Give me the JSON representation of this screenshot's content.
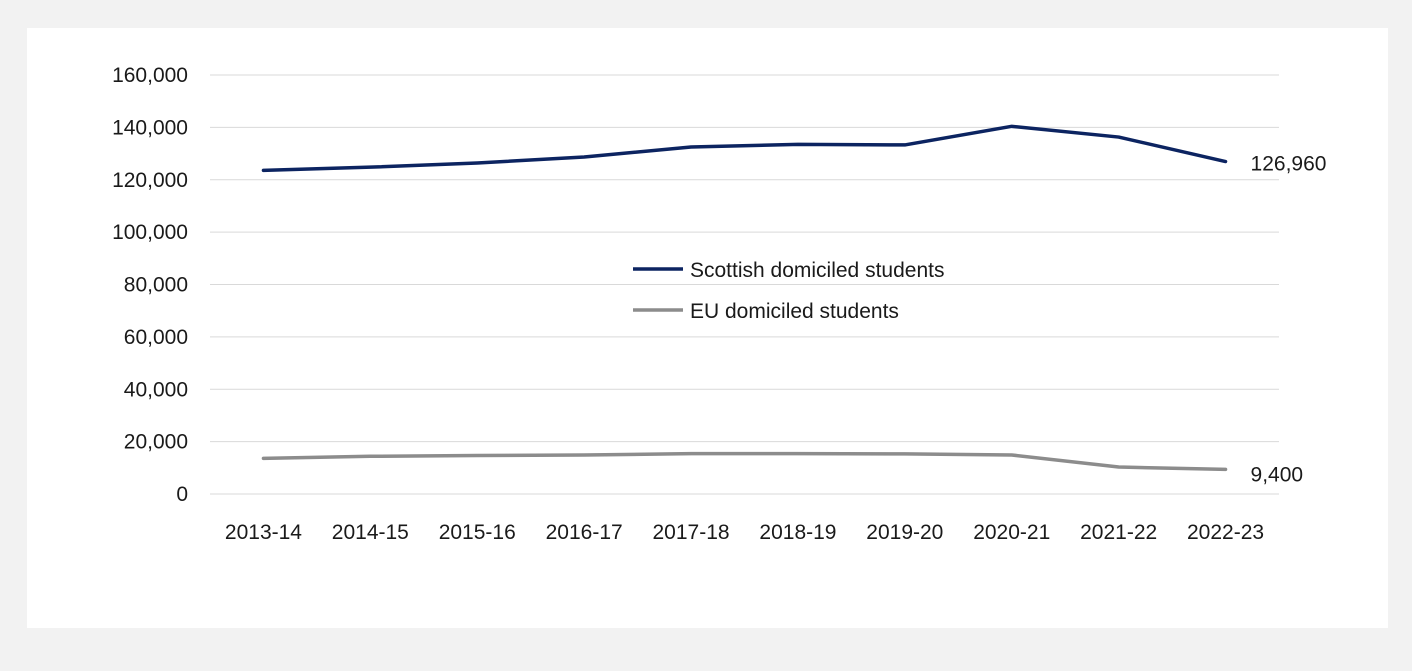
{
  "chart_data": {
    "type": "line",
    "categories": [
      "2013-14",
      "2014-15",
      "2015-16",
      "2016-17",
      "2017-18",
      "2018-19",
      "2019-20",
      "2020-21",
      "2021-22",
      "2022-23"
    ],
    "series": [
      {
        "name": "Scottish domiciled students",
        "values": [
          123600,
          124800,
          126400,
          128700,
          132500,
          133500,
          133300,
          140400,
          136300,
          126960
        ],
        "color": "#0c2461",
        "end_label": "126,960"
      },
      {
        "name": "EU domiciled students",
        "values": [
          13600,
          14400,
          14700,
          14900,
          15400,
          15400,
          15300,
          14900,
          10300,
          9400
        ],
        "color": "#8c8c8c",
        "end_label": "9,400"
      }
    ],
    "ylim": [
      0,
      160000
    ],
    "yticks": [
      0,
      20000,
      40000,
      60000,
      80000,
      100000,
      120000,
      140000,
      160000
    ],
    "ytick_labels": [
      "0",
      "20,000",
      "40,000",
      "60,000",
      "80,000",
      "100,000",
      "120,000",
      "140,000",
      "160,000"
    ],
    "grid": true,
    "legend_position": "center"
  }
}
